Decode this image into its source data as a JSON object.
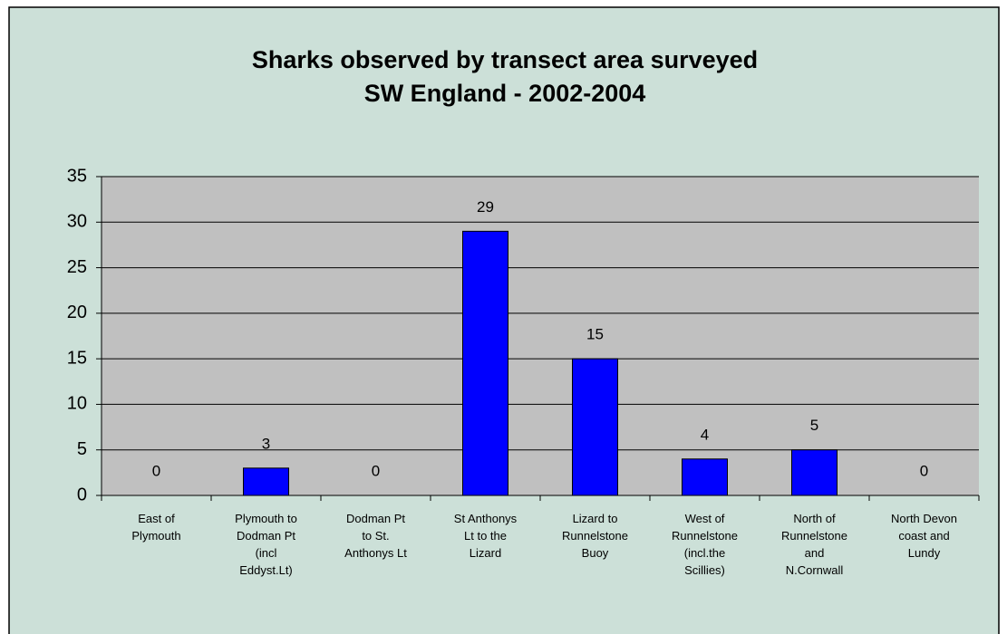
{
  "chart_data": {
    "type": "bar",
    "title": "Sharks observed by transect area surveyed",
    "subtitle": "SW England - 2002-2004",
    "categories": [
      "East of\nPlymouth",
      "Plymouth to\nDodman Pt\n(incl\nEddyst.Lt)",
      "Dodman Pt\nto St.\nAnthonys Lt",
      "St Anthonys\nLt to the\nLizard",
      "Lizard to\nRunnelstone\nBuoy",
      "West of\nRunnelstone\n(incl.the\nScillies)",
      "North of\nRunnelstone\nand\nN.Cornwall",
      "North Devon\ncoast and\nLundy"
    ],
    "values": [
      0,
      3,
      0,
      29,
      15,
      4,
      5,
      0
    ],
    "color": "#0000ff",
    "ylim": [
      0,
      35
    ],
    "yticks": [
      0,
      5,
      10,
      15,
      20,
      25,
      30,
      35
    ],
    "grid": true
  }
}
